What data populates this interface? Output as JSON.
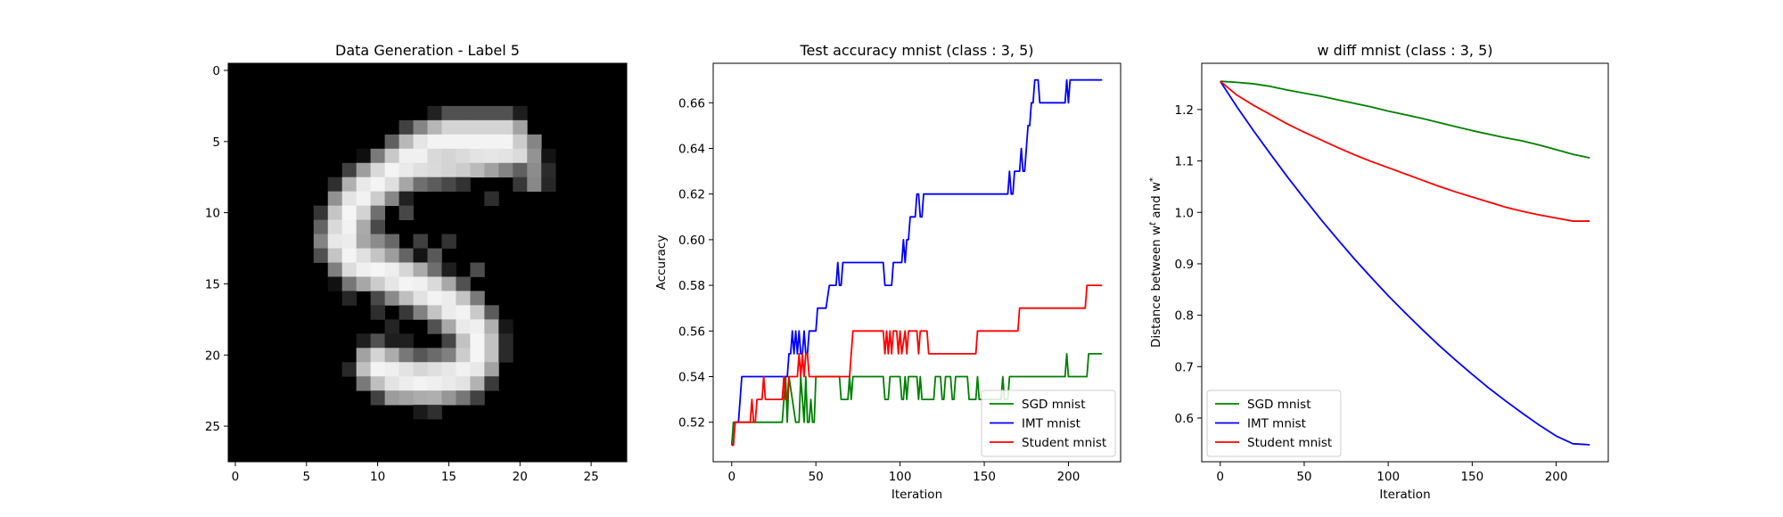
{
  "chart_data": [
    {
      "type": "heatmap",
      "title": "Data Generation - Label 5",
      "xlabel": "",
      "ylabel": "",
      "xlim": [
        -0.5,
        27.5
      ],
      "ylim": [
        27.5,
        -0.5
      ],
      "xticks": [
        0,
        5,
        10,
        15,
        20,
        25
      ],
      "yticks": [
        0,
        5,
        10,
        15,
        20,
        25
      ],
      "colormap": "gray",
      "image_size": [
        28,
        28
      ],
      "strokes": [
        {
          "points": [
            [
              19,
              4.8
            ],
            [
              15,
              4.8
            ],
            [
              13,
              5.6
            ],
            [
              11,
              7.2
            ],
            [
              9,
              8.6
            ],
            [
              8,
              10
            ],
            [
              7.5,
              12
            ],
            [
              8.5,
              13.5
            ],
            [
              11,
              14.4
            ],
            [
              14,
              15.8
            ],
            [
              16,
              17.2
            ],
            [
              17,
              18.6
            ],
            [
              17,
              20.2
            ],
            [
              16,
              21.4
            ],
            [
              13,
              21.8
            ],
            [
              11,
              21.4
            ],
            [
              10,
              20.8
            ]
          ],
          "width": 2.2,
          "intensity": 0.96
        },
        {
          "points": [
            [
              12,
              6.8
            ],
            [
              16,
              6.4
            ],
            [
              20,
              5.6
            ]
          ],
          "width": 1.8,
          "intensity": 0.9
        },
        {
          "points": [
            [
              9,
              11.5
            ],
            [
              10.5,
              12.5
            ]
          ],
          "width": 1.4,
          "intensity": 0.55
        },
        {
          "points": [
            [
              11,
              22.5
            ],
            [
              14,
              22.8
            ],
            [
              16,
              22
            ]
          ],
          "width": 1.4,
          "intensity": 0.7
        },
        {
          "points": [
            [
              19,
              5.2
            ],
            [
              21,
              6.5
            ],
            [
              21,
              7.8
            ]
          ],
          "width": 1.2,
          "intensity": 0.55
        }
      ],
      "noise": [
        {
          "x": 10,
          "y": 17,
          "v": 0.18
        },
        {
          "x": 11,
          "y": 18,
          "v": 0.14
        },
        {
          "x": 9,
          "y": 19,
          "v": 0.1
        },
        {
          "x": 12,
          "y": 19,
          "v": 0.12
        },
        {
          "x": 14,
          "y": 13,
          "v": 0.35
        },
        {
          "x": 13,
          "y": 12,
          "v": 0.25
        },
        {
          "x": 15,
          "y": 12,
          "v": 0.2
        },
        {
          "x": 18,
          "y": 9,
          "v": 0.18
        },
        {
          "x": 20,
          "y": 8,
          "v": 0.22
        },
        {
          "x": 8,
          "y": 16,
          "v": 0.15
        },
        {
          "x": 9,
          "y": 22,
          "v": 0.18
        },
        {
          "x": 18,
          "y": 19,
          "v": 0.22
        },
        {
          "x": 17,
          "y": 14,
          "v": 0.3
        },
        {
          "x": 17,
          "y": 16,
          "v": 0.38
        },
        {
          "x": 12,
          "y": 10,
          "v": 0.28
        }
      ]
    },
    {
      "type": "line",
      "title": "Test accuracy mnist (class : 3, 5)",
      "xlabel": "Iteration",
      "ylabel": "Accuracy",
      "xlim": [
        -11,
        231
      ],
      "ylim": [
        0.5027,
        0.6773
      ],
      "xticks": [
        0,
        50,
        100,
        150,
        200
      ],
      "yticks": [
        0.52,
        0.54,
        0.56,
        0.58,
        0.6,
        0.62,
        0.64,
        0.66
      ],
      "grid": false,
      "legend": "lower-right",
      "series": [
        {
          "name": "SGD mnist",
          "color": "#008000",
          "x": [
            0,
            1,
            2,
            20,
            21,
            30,
            31,
            32,
            33,
            34,
            36,
            38,
            40,
            41,
            43,
            44,
            45,
            46,
            47,
            48,
            49,
            50,
            64,
            65,
            69,
            70,
            71,
            72,
            90,
            91,
            93,
            94,
            100,
            101,
            102,
            103,
            104,
            105,
            110,
            111,
            112,
            113,
            120,
            121,
            124,
            125,
            126,
            127,
            130,
            131,
            132,
            133,
            140,
            141,
            143,
            145,
            146,
            147,
            150,
            160,
            161,
            162,
            164,
            165,
            198,
            199,
            200,
            201,
            211,
            212,
            220
          ],
          "y": [
            0.51,
            0.52,
            0.52,
            0.52,
            0.52,
            0.52,
            0.53,
            0.54,
            0.52,
            0.54,
            0.53,
            0.52,
            0.52,
            0.54,
            0.52,
            0.54,
            0.52,
            0.52,
            0.53,
            0.52,
            0.52,
            0.54,
            0.54,
            0.53,
            0.53,
            0.54,
            0.53,
            0.54,
            0.54,
            0.53,
            0.53,
            0.54,
            0.54,
            0.53,
            0.53,
            0.54,
            0.53,
            0.54,
            0.54,
            0.53,
            0.54,
            0.53,
            0.53,
            0.54,
            0.54,
            0.53,
            0.53,
            0.54,
            0.54,
            0.53,
            0.53,
            0.54,
            0.54,
            0.53,
            0.53,
            0.53,
            0.54,
            0.53,
            0.53,
            0.53,
            0.54,
            0.53,
            0.53,
            0.54,
            0.54,
            0.55,
            0.54,
            0.54,
            0.54,
            0.55,
            0.55
          ]
        },
        {
          "name": "IMT mnist",
          "color": "#0000ff",
          "x": [
            0,
            1,
            2,
            3,
            4,
            5,
            6,
            20,
            25,
            33,
            34,
            35,
            36,
            37,
            38,
            39,
            40,
            41,
            42,
            43,
            44,
            45,
            46,
            47,
            48,
            50,
            51,
            52,
            54,
            55,
            56,
            58,
            59,
            60,
            62,
            63,
            64,
            65,
            66,
            67,
            68,
            69,
            90,
            91,
            93,
            95,
            96,
            97,
            98,
            99,
            100,
            101,
            102,
            103,
            104,
            105,
            106,
            108,
            109,
            110,
            111,
            112,
            113,
            114,
            115,
            117,
            164,
            165,
            166,
            167,
            168,
            170,
            171,
            172,
            173,
            174,
            175,
            176,
            177,
            178,
            179,
            180,
            181,
            182,
            183,
            184,
            185,
            186,
            187,
            188,
            190,
            198,
            199,
            200,
            201,
            202,
            220
          ],
          "y": [
            0.51,
            0.51,
            0.52,
            0.52,
            0.52,
            0.53,
            0.54,
            0.54,
            0.54,
            0.54,
            0.55,
            0.55,
            0.56,
            0.55,
            0.56,
            0.55,
            0.56,
            0.55,
            0.55,
            0.56,
            0.55,
            0.55,
            0.56,
            0.56,
            0.56,
            0.56,
            0.57,
            0.57,
            0.57,
            0.57,
            0.57,
            0.58,
            0.58,
            0.58,
            0.58,
            0.59,
            0.58,
            0.58,
            0.59,
            0.59,
            0.59,
            0.59,
            0.59,
            0.58,
            0.58,
            0.58,
            0.59,
            0.59,
            0.59,
            0.59,
            0.59,
            0.59,
            0.6,
            0.59,
            0.6,
            0.6,
            0.61,
            0.61,
            0.61,
            0.62,
            0.62,
            0.61,
            0.61,
            0.62,
            0.62,
            0.62,
            0.62,
            0.63,
            0.62,
            0.62,
            0.63,
            0.63,
            0.63,
            0.64,
            0.63,
            0.63,
            0.64,
            0.65,
            0.65,
            0.66,
            0.66,
            0.67,
            0.67,
            0.67,
            0.66,
            0.66,
            0.66,
            0.66,
            0.66,
            0.66,
            0.66,
            0.66,
            0.67,
            0.66,
            0.67,
            0.67,
            0.67
          ]
        },
        {
          "name": "Student mnist",
          "color": "#ff0000",
          "x": [
            0,
            1,
            2,
            10,
            11,
            12,
            13,
            14,
            15,
            16,
            17,
            18,
            19,
            20,
            21,
            22,
            23,
            30,
            31,
            32,
            33,
            34,
            35,
            38,
            39,
            40,
            41,
            42,
            43,
            44,
            45,
            46,
            47,
            48,
            49,
            50,
            55,
            60,
            61,
            63,
            64,
            65,
            70,
            71,
            72,
            73,
            90,
            91,
            92,
            93,
            94,
            95,
            96,
            98,
            99,
            100,
            101,
            103,
            104,
            105,
            110,
            111,
            112,
            115,
            116,
            117,
            118,
            120,
            122,
            125,
            130,
            145,
            146,
            147,
            165,
            170,
            171,
            172,
            200,
            201,
            210,
            211,
            212,
            215,
            220
          ],
          "y": [
            0.51,
            0.51,
            0.52,
            0.52,
            0.52,
            0.53,
            0.52,
            0.52,
            0.53,
            0.53,
            0.53,
            0.53,
            0.54,
            0.53,
            0.53,
            0.53,
            0.53,
            0.53,
            0.54,
            0.53,
            0.53,
            0.54,
            0.54,
            0.54,
            0.54,
            0.55,
            0.54,
            0.55,
            0.54,
            0.55,
            0.55,
            0.54,
            0.54,
            0.54,
            0.54,
            0.54,
            0.54,
            0.54,
            0.54,
            0.54,
            0.54,
            0.54,
            0.54,
            0.55,
            0.56,
            0.56,
            0.56,
            0.55,
            0.56,
            0.55,
            0.56,
            0.55,
            0.56,
            0.56,
            0.55,
            0.56,
            0.55,
            0.56,
            0.55,
            0.56,
            0.56,
            0.55,
            0.56,
            0.56,
            0.56,
            0.55,
            0.55,
            0.55,
            0.55,
            0.55,
            0.55,
            0.55,
            0.56,
            0.56,
            0.56,
            0.56,
            0.57,
            0.57,
            0.57,
            0.57,
            0.57,
            0.58,
            0.58,
            0.58,
            0.58
          ]
        }
      ]
    },
    {
      "type": "line",
      "title": "w diff mnist (class : 3, 5)",
      "xlabel": "Iteration",
      "ylabel": "Distance between w",
      "ylabel_sup_1": "t",
      "ylabel_mid": " and w",
      "ylabel_sup_2": "*",
      "xlim": [
        -11,
        231
      ],
      "ylim": [
        0.515,
        1.29
      ],
      "xticks": [
        0,
        50,
        100,
        150,
        200
      ],
      "yticks": [
        0.6,
        0.7,
        0.8,
        0.9,
        1.0,
        1.1,
        1.2
      ],
      "grid": false,
      "legend": "lower-left",
      "series": [
        {
          "name": "SGD mnist",
          "color": "#008000",
          "x": [
            0,
            10,
            20,
            30,
            40,
            50,
            60,
            70,
            80,
            90,
            100,
            110,
            120,
            130,
            140,
            150,
            160,
            170,
            180,
            190,
            200,
            210,
            220
          ],
          "y": [
            1.255,
            1.253,
            1.25,
            1.245,
            1.238,
            1.232,
            1.226,
            1.219,
            1.212,
            1.205,
            1.197,
            1.19,
            1.183,
            1.175,
            1.167,
            1.159,
            1.152,
            1.145,
            1.139,
            1.131,
            1.122,
            1.113,
            1.106
          ]
        },
        {
          "name": "IMT mnist",
          "color": "#0000ff",
          "x": [
            0,
            10,
            20,
            30,
            40,
            50,
            60,
            70,
            80,
            90,
            100,
            110,
            120,
            130,
            140,
            150,
            160,
            170,
            180,
            190,
            200,
            210,
            220
          ],
          "y": [
            1.255,
            1.205,
            1.158,
            1.113,
            1.069,
            1.027,
            0.986,
            0.947,
            0.909,
            0.873,
            0.838,
            0.805,
            0.773,
            0.742,
            0.713,
            0.685,
            0.658,
            0.633,
            0.609,
            0.586,
            0.565,
            0.55,
            0.548
          ]
        },
        {
          "name": "Student mnist",
          "color": "#ff0000",
          "x": [
            0,
            10,
            20,
            30,
            40,
            50,
            60,
            70,
            80,
            90,
            100,
            110,
            120,
            130,
            140,
            150,
            160,
            170,
            180,
            190,
            200,
            210,
            220
          ],
          "y": [
            1.255,
            1.228,
            1.208,
            1.19,
            1.172,
            1.156,
            1.141,
            1.126,
            1.112,
            1.099,
            1.087,
            1.075,
            1.063,
            1.051,
            1.04,
            1.03,
            1.02,
            1.01,
            1.002,
            0.995,
            0.989,
            0.983,
            0.983
          ]
        }
      ]
    }
  ]
}
